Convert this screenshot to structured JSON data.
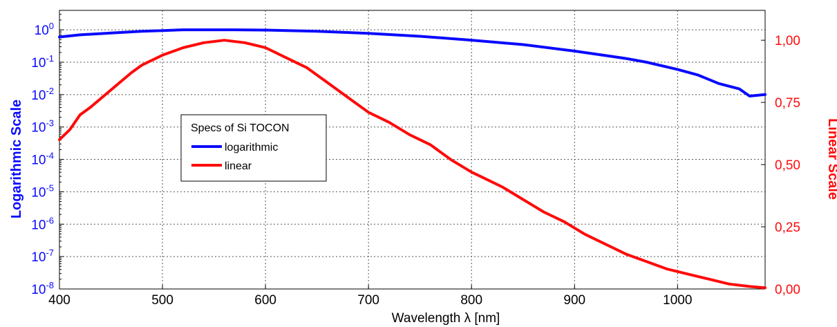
{
  "chart_data": {
    "type": "line",
    "xlabel": "Wavelength λ [nm]",
    "ylabel_left": "Logarithmic Scale",
    "ylabel_right": "Linear Scale",
    "xlim": [
      400,
      1085
    ],
    "x_ticks": [
      400,
      500,
      600,
      700,
      800,
      900,
      1000
    ],
    "ylim_left_log10": [
      -8,
      0.6
    ],
    "y_ticks_left": [
      {
        "base": "10",
        "exp": "0"
      },
      {
        "base": "10",
        "exp": "-1"
      },
      {
        "base": "10",
        "exp": "-2"
      },
      {
        "base": "10",
        "exp": "-3"
      },
      {
        "base": "10",
        "exp": "-4"
      },
      {
        "base": "10",
        "exp": "-5"
      },
      {
        "base": "10",
        "exp": "-6"
      },
      {
        "base": "10",
        "exp": "-7"
      },
      {
        "base": "10",
        "exp": "-8"
      }
    ],
    "ylim_right": [
      0,
      1.12
    ],
    "y_ticks_right": [
      "1,00",
      "0,75",
      "0,50",
      "0,25",
      "0,00"
    ],
    "y_ticks_right_values": [
      1.0,
      0.75,
      0.5,
      0.25,
      0.0
    ],
    "grid": true,
    "legend": {
      "title": "Specs of Si TOCON",
      "placement": "center-left",
      "entries": [
        "logarithmic",
        "linear"
      ]
    },
    "colors": {
      "logarithmic": "#0a0aff",
      "linear": "#ff0a0a",
      "left_axis": "#0a0aff",
      "right_axis": "#ff0a0a"
    },
    "series": [
      {
        "name": "logarithmic",
        "axis": "left",
        "scale": "log",
        "x": [
          400,
          420,
          450,
          480,
          500,
          520,
          550,
          570,
          600,
          650,
          700,
          750,
          800,
          850,
          900,
          950,
          970,
          1000,
          1020,
          1040,
          1060,
          1070,
          1085
        ],
        "y": [
          0.6,
          0.7,
          0.8,
          0.9,
          0.95,
          1.0,
          1.0,
          1.0,
          0.98,
          0.9,
          0.78,
          0.63,
          0.48,
          0.35,
          0.22,
          0.13,
          0.1,
          0.06,
          0.04,
          0.022,
          0.015,
          0.009,
          0.01
        ]
      },
      {
        "name": "linear",
        "axis": "right",
        "scale": "linear",
        "x": [
          400,
          410,
          420,
          430,
          450,
          470,
          480,
          500,
          520,
          540,
          560,
          580,
          600,
          610,
          620,
          640,
          660,
          680,
          700,
          720,
          740,
          760,
          780,
          800,
          810,
          820,
          830,
          850,
          870,
          890,
          910,
          930,
          950,
          970,
          990,
          1010,
          1030,
          1050,
          1070,
          1085
        ],
        "y": [
          0.6,
          0.64,
          0.7,
          0.73,
          0.8,
          0.87,
          0.9,
          0.94,
          0.97,
          0.99,
          1.0,
          0.99,
          0.97,
          0.95,
          0.93,
          0.89,
          0.83,
          0.77,
          0.71,
          0.67,
          0.62,
          0.58,
          0.52,
          0.47,
          0.45,
          0.43,
          0.41,
          0.36,
          0.31,
          0.27,
          0.22,
          0.18,
          0.14,
          0.11,
          0.08,
          0.06,
          0.04,
          0.02,
          0.01,
          0.005
        ]
      }
    ]
  }
}
